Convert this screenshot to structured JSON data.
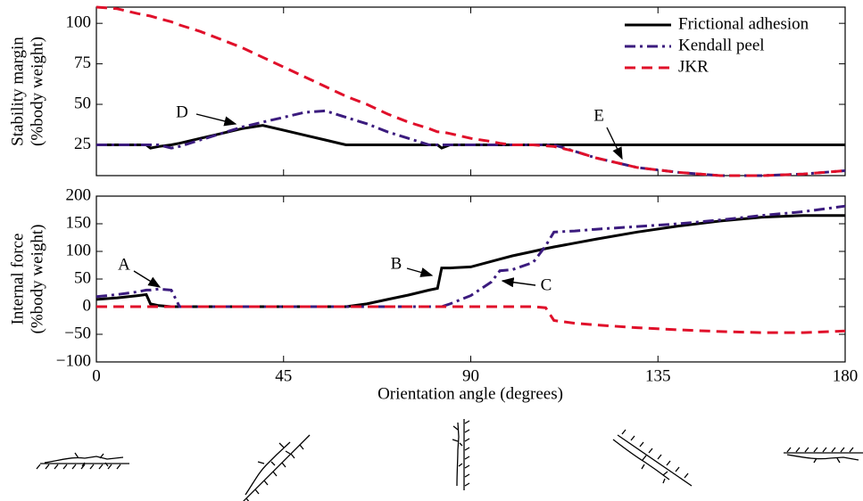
{
  "chart_data": [
    {
      "type": "line",
      "ylabel": [
        "Stability margin",
        "(%body weight)"
      ],
      "x": [
        0,
        5,
        10,
        12,
        13,
        15,
        18,
        20,
        25,
        30,
        35,
        40,
        45,
        50,
        55,
        60,
        65,
        70,
        75,
        80,
        82,
        83,
        85,
        90,
        95,
        97,
        100,
        105,
        110,
        115,
        120,
        130,
        140,
        150,
        160,
        170,
        180
      ],
      "series": [
        {
          "name": "Frictional adhesion",
          "color": "#000000",
          "dash": "solid",
          "values": [
            25,
            25,
            25,
            25,
            23,
            24,
            25,
            26,
            29,
            32,
            35,
            37,
            34,
            31,
            28,
            25,
            25,
            25,
            25,
            25,
            25,
            23,
            25,
            25,
            25,
            25,
            25,
            25,
            25,
            25,
            25,
            25,
            25,
            25,
            25,
            25,
            25
          ]
        },
        {
          "name": "Kendall peel",
          "color": "#3b1b7e",
          "dash": "dashdot",
          "values": [
            25,
            25,
            25,
            25,
            25,
            25,
            23,
            24,
            28,
            32,
            36,
            39,
            42,
            45,
            46,
            42,
            38,
            33,
            29,
            25,
            25,
            25,
            25,
            25,
            25,
            25,
            25,
            25,
            25,
            21,
            17,
            11,
            8,
            6,
            6,
            7,
            9
          ]
        },
        {
          "name": "JKR",
          "color": "#e0102a",
          "dash": "dashed",
          "values": [
            110,
            109,
            106,
            105,
            104.5,
            103,
            101,
            99,
            95,
            90,
            85,
            79,
            73,
            67,
            61,
            55,
            50,
            44,
            39,
            35,
            33,
            33,
            32,
            29,
            27,
            26,
            25,
            25,
            24,
            21,
            17,
            11,
            8,
            6,
            6,
            7,
            9
          ]
        }
      ],
      "xlim": [
        0,
        180
      ],
      "ylim": [
        6,
        110
      ],
      "yticks": [
        25,
        50,
        75,
        100
      ],
      "legend": "upper right",
      "annotations": [
        "D",
        "E"
      ]
    },
    {
      "type": "line",
      "ylabel": [
        "Internal force",
        "(%body weight)"
      ],
      "xlabel": "Orientation angle (degrees)",
      "x": [
        0,
        5,
        10,
        12,
        13,
        15,
        18,
        20,
        25,
        30,
        35,
        40,
        45,
        50,
        55,
        60,
        65,
        70,
        75,
        80,
        82,
        83,
        85,
        90,
        95,
        97,
        100,
        105,
        108,
        110,
        115,
        120,
        130,
        140,
        150,
        160,
        170,
        180
      ],
      "series": [
        {
          "name": "Frictional adhesion",
          "color": "#000000",
          "dash": "solid",
          "values": [
            13,
            16,
            20,
            22,
            5,
            2,
            0,
            0,
            0,
            0,
            0,
            0,
            0,
            0,
            0,
            0,
            5,
            13,
            21,
            30,
            33,
            70,
            70,
            72,
            82,
            86,
            92,
            100,
            105,
            108,
            115,
            122,
            135,
            146,
            155,
            162,
            165,
            165
          ]
        },
        {
          "name": "Kendall peel",
          "color": "#3b1b7e",
          "dash": "dashdot",
          "values": [
            18,
            22,
            27,
            30,
            30,
            32,
            30,
            0,
            0,
            0,
            0,
            0,
            0,
            0,
            0,
            0,
            0,
            0,
            0,
            0,
            0,
            0,
            5,
            20,
            45,
            65,
            67,
            80,
            110,
            135,
            137,
            140,
            145,
            150,
            157,
            165,
            172,
            182
          ]
        },
        {
          "name": "JKR",
          "color": "#e0102a",
          "dash": "dashed",
          "values": [
            0,
            0,
            0,
            0,
            0,
            0,
            0,
            0,
            0,
            0,
            0,
            0,
            0,
            0,
            0,
            0,
            0,
            0,
            0,
            0,
            0,
            0,
            0,
            0,
            0,
            0,
            0,
            0,
            -2,
            -25,
            -30,
            -33,
            -38,
            -42,
            -45,
            -47,
            -47,
            -44
          ]
        }
      ],
      "xlim": [
        0,
        180
      ],
      "ylim": [
        -100,
        200
      ],
      "xticks": [
        0,
        45,
        90,
        135,
        180
      ],
      "yticks": [
        {
          "value": -100,
          "label": "−100"
        },
        {
          "value": -50,
          "label": "−50"
        },
        0,
        50,
        100,
        150,
        200
      ],
      "annotations": [
        "A",
        "B",
        "C"
      ]
    }
  ]
}
